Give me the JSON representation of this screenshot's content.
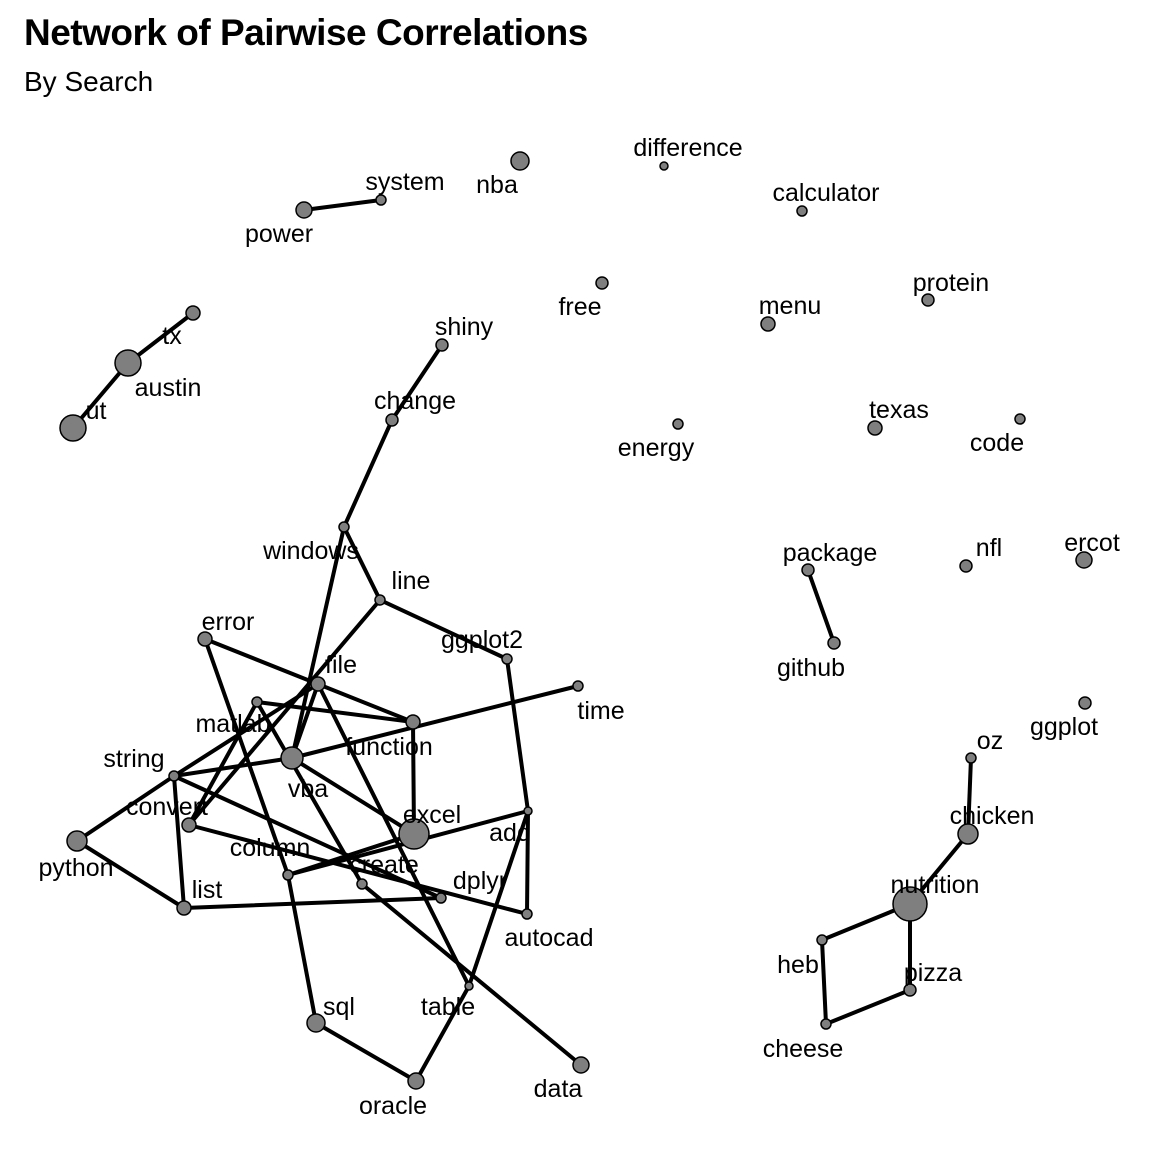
{
  "title": "Network of Pairwise Correlations",
  "subtitle": "By Search",
  "colors": {
    "node_fill": "#7f7f7f",
    "node_stroke": "#000000",
    "edge": "#000000",
    "background": "#ffffff"
  },
  "nodes": [
    {
      "id": "system",
      "label": "system"
    },
    {
      "id": "power",
      "label": "power"
    },
    {
      "id": "nba",
      "label": "nba"
    },
    {
      "id": "difference",
      "label": "difference"
    },
    {
      "id": "calculator",
      "label": "calculator"
    },
    {
      "id": "free",
      "label": "free"
    },
    {
      "id": "menu",
      "label": "menu"
    },
    {
      "id": "protein",
      "label": "protein"
    },
    {
      "id": "tx",
      "label": "tx"
    },
    {
      "id": "austin",
      "label": "austin"
    },
    {
      "id": "ut",
      "label": "ut"
    },
    {
      "id": "shiny",
      "label": "shiny"
    },
    {
      "id": "change",
      "label": "change"
    },
    {
      "id": "energy",
      "label": "energy"
    },
    {
      "id": "texas",
      "label": "texas"
    },
    {
      "id": "code",
      "label": "code"
    },
    {
      "id": "windows",
      "label": "windows"
    },
    {
      "id": "line",
      "label": "line"
    },
    {
      "id": "package",
      "label": "package"
    },
    {
      "id": "github",
      "label": "github"
    },
    {
      "id": "nfl",
      "label": "nfl"
    },
    {
      "id": "ercot",
      "label": "ercot"
    },
    {
      "id": "error",
      "label": "error"
    },
    {
      "id": "ggplot2",
      "label": "ggplot2"
    },
    {
      "id": "file",
      "label": "file"
    },
    {
      "id": "time",
      "label": "time"
    },
    {
      "id": "matlab",
      "label": "matlab"
    },
    {
      "id": "function",
      "label": "function"
    },
    {
      "id": "ggplot",
      "label": "ggplot"
    },
    {
      "id": "oz",
      "label": "oz"
    },
    {
      "id": "string",
      "label": "string"
    },
    {
      "id": "vba",
      "label": "vba"
    },
    {
      "id": "convert",
      "label": "convert"
    },
    {
      "id": "excel",
      "label": "excel"
    },
    {
      "id": "add",
      "label": "add"
    },
    {
      "id": "chicken",
      "label": "chicken"
    },
    {
      "id": "python",
      "label": "python"
    },
    {
      "id": "column",
      "label": "column"
    },
    {
      "id": "create",
      "label": "create"
    },
    {
      "id": "dplyr",
      "label": "dplyr"
    },
    {
      "id": "list",
      "label": "list"
    },
    {
      "id": "nutrition",
      "label": "nutrition"
    },
    {
      "id": "autocad",
      "label": "autocad"
    },
    {
      "id": "heb",
      "label": "heb"
    },
    {
      "id": "pizza",
      "label": "pizza"
    },
    {
      "id": "sql",
      "label": "sql"
    },
    {
      "id": "table",
      "label": "table"
    },
    {
      "id": "cheese",
      "label": "cheese"
    },
    {
      "id": "data",
      "label": "data"
    },
    {
      "id": "oracle",
      "label": "oracle"
    }
  ],
  "edges": [
    [
      "power",
      "system"
    ],
    [
      "tx",
      "austin"
    ],
    [
      "austin",
      "ut"
    ],
    [
      "shiny",
      "change"
    ],
    [
      "change",
      "windows"
    ],
    [
      "windows",
      "line"
    ],
    [
      "windows",
      "vba"
    ],
    [
      "line",
      "ggplot2"
    ],
    [
      "line",
      "convert"
    ],
    [
      "ggplot2",
      "add"
    ],
    [
      "package",
      "github"
    ],
    [
      "error",
      "function"
    ],
    [
      "error",
      "column"
    ],
    [
      "file",
      "vba"
    ],
    [
      "file",
      "table"
    ],
    [
      "file",
      "string"
    ],
    [
      "matlab",
      "function"
    ],
    [
      "matlab",
      "convert"
    ],
    [
      "string",
      "vba"
    ],
    [
      "string",
      "python"
    ],
    [
      "string",
      "dplyr"
    ],
    [
      "string",
      "list"
    ],
    [
      "vba",
      "excel"
    ],
    [
      "vba",
      "time"
    ],
    [
      "function",
      "excel"
    ],
    [
      "convert",
      "autocad"
    ],
    [
      "python",
      "list"
    ],
    [
      "excel",
      "column"
    ],
    [
      "column",
      "add"
    ],
    [
      "column",
      "sql"
    ],
    [
      "list",
      "dplyr"
    ],
    [
      "create",
      "data"
    ],
    [
      "create",
      "matlab"
    ],
    [
      "add",
      "table"
    ],
    [
      "add",
      "autocad"
    ],
    [
      "table",
      "oracle"
    ],
    [
      "sql",
      "oracle"
    ],
    [
      "oz",
      "chicken"
    ],
    [
      "chicken",
      "nutrition"
    ],
    [
      "nutrition",
      "heb"
    ],
    [
      "nutrition",
      "pizza"
    ],
    [
      "heb",
      "cheese"
    ],
    [
      "cheese",
      "pizza"
    ]
  ]
}
